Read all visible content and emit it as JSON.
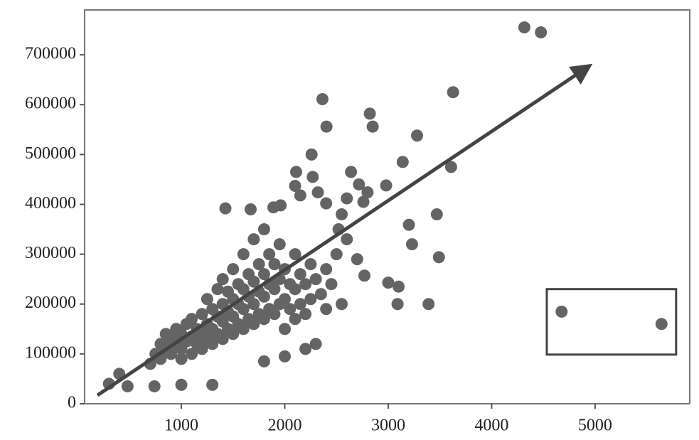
{
  "chart_data": {
    "type": "scatter",
    "color": "#646464",
    "xlim": [
      65,
      5915
    ],
    "ylim": [
      0,
      790000
    ],
    "xticks": [
      1000,
      2000,
      3000,
      4000,
      5000
    ],
    "yticks": [
      0,
      100000,
      200000,
      300000,
      400000,
      500000,
      600000,
      700000
    ],
    "x": [
      4316,
      4476,
      3627,
      2364,
      2822,
      2403,
      2850,
      3279,
      2259,
      3140,
      3608,
      2640,
      2110,
      2270,
      2717,
      2980,
      2100,
      2800,
      2320,
      2150,
      2600,
      2760,
      2400,
      1426,
      1670,
      1890,
      1960,
      3470,
      2550,
      3200,
      2520,
      3230,
      3490,
      3000,
      3100,
      2770,
      3090,
      3390,
      4676,
      5642,
      300,
      480,
      740,
      1000,
      1300,
      400,
      700,
      750,
      800,
      800,
      850,
      850,
      900,
      900,
      950,
      950,
      1000,
      1000,
      1000,
      1050,
      1050,
      1100,
      1100,
      1100,
      1150,
      1150,
      1200,
      1200,
      1200,
      1250,
      1250,
      1250,
      1300,
      1300,
      1300,
      1350,
      1350,
      1350,
      1400,
      1400,
      1400,
      1400,
      1450,
      1450,
      1450,
      1500,
      1500,
      1500,
      1500,
      1550,
      1550,
      1550,
      1600,
      1600,
      1600,
      1600,
      1650,
      1650,
      1650,
      1700,
      1700,
      1700,
      1700,
      1750,
      1750,
      1750,
      1800,
      1800,
      1800,
      1800,
      1850,
      1850,
      1850,
      1900,
      1900,
      1900,
      1950,
      1950,
      1950,
      2000,
      2000,
      2000,
      2050,
      2050,
      2100,
      2100,
      2100,
      2150,
      2150,
      2200,
      2200,
      2250,
      2250,
      2300,
      2300,
      2350,
      2400,
      2400,
      2450,
      2500,
      2550,
      2600,
      2700,
      2200,
      2000,
      1800
    ],
    "y": [
      755000,
      745000,
      625000,
      611000,
      582000,
      556000,
      556000,
      538000,
      500000,
      485000,
      475000,
      465000,
      465000,
      455000,
      440000,
      438000,
      437000,
      424000,
      424000,
      418000,
      412000,
      405000,
      402000,
      392000,
      390000,
      394000,
      398000,
      380000,
      380000,
      359000,
      350000,
      320000,
      294000,
      243000,
      235000,
      257000,
      200000,
      200000,
      184750,
      160000,
      40000,
      35000,
      35000,
      38000,
      38000,
      60000,
      80000,
      100000,
      90000,
      120000,
      110000,
      140000,
      100000,
      130000,
      120000,
      150000,
      90000,
      110000,
      140000,
      125000,
      160000,
      100000,
      135000,
      170000,
      120000,
      150000,
      110000,
      140000,
      180000,
      130000,
      160000,
      210000,
      120000,
      150000,
      190000,
      140000,
      175000,
      230000,
      130000,
      165000,
      200000,
      250000,
      150000,
      185000,
      225000,
      140000,
      175000,
      210000,
      270000,
      160000,
      200000,
      240000,
      150000,
      190000,
      230000,
      300000,
      170000,
      215000,
      260000,
      160000,
      200000,
      245000,
      330000,
      180000,
      225000,
      280000,
      170000,
      215000,
      260000,
      350000,
      190000,
      240000,
      300000,
      180000,
      230000,
      280000,
      200000,
      250000,
      320000,
      150000,
      210000,
      270000,
      190000,
      240000,
      170000,
      230000,
      300000,
      200000,
      260000,
      180000,
      240000,
      210000,
      280000,
      120000,
      250000,
      220000,
      190000,
      270000,
      240000,
      300000,
      200000,
      330000,
      290000,
      110000,
      95000,
      85000
    ],
    "trend_arrow": {
      "x": [
        189,
        4918
      ],
      "y": [
        17000,
        674000
      ]
    },
    "highlight_box": {
      "x": [
        4533,
        5783
      ],
      "y": [
        98600,
        230000
      ]
    }
  }
}
